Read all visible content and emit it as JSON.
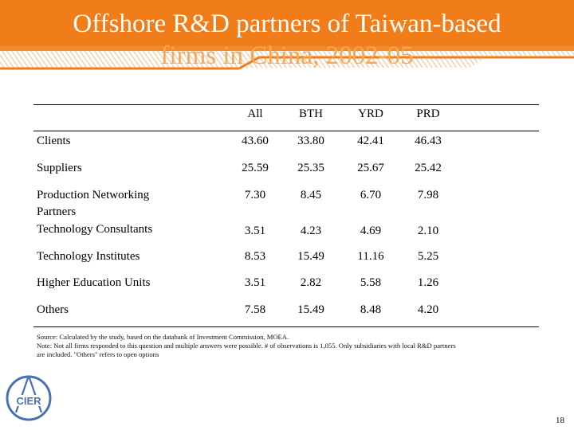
{
  "title": {
    "line1": "Offshore R&D partners of Taiwan-based",
    "line2": "firms in China, 2002-05"
  },
  "table": {
    "columns": [
      "All",
      "BTH",
      "YRD",
      "PRD"
    ],
    "rows": [
      {
        "label": [
          "Clients"
        ],
        "values": [
          "43.60",
          "33.80",
          "42.41",
          "46.43"
        ]
      },
      {
        "label": [
          "Suppliers"
        ],
        "values": [
          "25.59",
          "25.35",
          "25.67",
          "25.42"
        ]
      },
      {
        "label": [
          "Production Networking",
          "Partners"
        ],
        "values": [
          "7.30",
          "8.45",
          "6.70",
          "7.98"
        ]
      },
      {
        "label": [
          "Technology Consultants"
        ],
        "values": [
          "3.51",
          "4.23",
          "4.69",
          "2.10"
        ]
      },
      {
        "label": [
          "Technology Institutes"
        ],
        "values": [
          "8.53",
          "15.49",
          "11.16",
          "5.25"
        ]
      },
      {
        "label": [
          "Higher Education Units"
        ],
        "values": [
          "3.51",
          "2.82",
          "5.58",
          "1.26"
        ]
      },
      {
        "label": [
          "Others"
        ],
        "values": [
          "7.58",
          "15.49",
          "8.48",
          "4.20"
        ]
      }
    ]
  },
  "notes": {
    "source": "Source: Calculated by the study, based on the databank of Investment Commission, MOEA.",
    "note1": "Note: Not all firms responded to this question and multiple answers were possible. # of observations is 1,055. Only subsidiaries with local R&D partners",
    "note2": "are included. \"Others\" refers to open options"
  },
  "logo": {
    "text": "CIER",
    "color": "#4a6fb5"
  },
  "page_number": "18",
  "colors": {
    "accent": "#f07d1a",
    "accent_light": "#f7a75a"
  }
}
